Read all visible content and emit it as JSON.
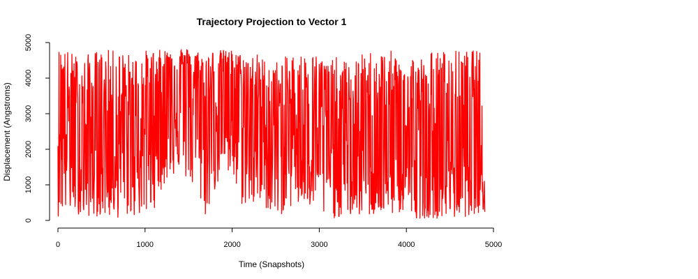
{
  "chart_data": {
    "type": "line",
    "title": "Trajectory Projection to Vector 1",
    "xlabel": "Time (Snapshots)",
    "ylabel": "Displacement (Angstroms)",
    "xlim": [
      0,
      5000
    ],
    "ylim": [
      0,
      5000
    ],
    "x_ticks": [
      0,
      1000,
      2000,
      3000,
      4000,
      5000
    ],
    "y_ticks": [
      0,
      1000,
      2000,
      3000,
      4000,
      5000
    ],
    "grid": false,
    "legend": "none",
    "series": [
      {
        "color": "#ff0000",
        "x": [
          0,
          100,
          200,
          300,
          400,
          500,
          600,
          700,
          800,
          900,
          1000,
          1100,
          1200,
          1300,
          1400,
          1500,
          1600,
          1700,
          1800,
          1900,
          2000,
          2100,
          2200,
          2300,
          2400,
          2500,
          2600,
          2700,
          2800,
          2900,
          3000,
          3100,
          3200,
          3300,
          3400,
          3500,
          3600,
          3700,
          3800,
          3900,
          4000,
          4100,
          4200,
          4300,
          4400,
          4500,
          4600,
          4700,
          4800,
          4900
        ],
        "y": [
          4000,
          3100,
          2300,
          1800,
          2200,
          2300,
          2500,
          2600,
          2400,
          2500,
          2700,
          3200,
          3900,
          4100,
          4200,
          4000,
          3600,
          2800,
          3800,
          4100,
          3900,
          3300,
          3000,
          3100,
          2700,
          2400,
          2600,
          2900,
          3000,
          2900,
          2700,
          2500,
          2200,
          2100,
          2000,
          2200,
          2400,
          2300,
          2100,
          2200,
          2000,
          1900,
          1900,
          2000,
          1800,
          1900,
          2000,
          2200,
          2300,
          2100
        ],
        "y_min": [
          100,
          150,
          200,
          100,
          100,
          100,
          50,
          50,
          100,
          100,
          100,
          300,
          900,
          1200,
          1400,
          1000,
          700,
          50,
          800,
          1300,
          1000,
          400,
          400,
          300,
          300,
          50,
          200,
          400,
          300,
          300,
          50,
          50,
          50,
          100,
          100,
          100,
          100,
          100,
          100,
          200,
          100,
          50,
          50,
          50,
          50,
          50,
          50,
          100,
          200,
          100
        ],
        "y_max": [
          4800,
          4800,
          4700,
          4600,
          4800,
          4800,
          4800,
          4800,
          4700,
          4700,
          4800,
          4800,
          4800,
          4850,
          4850,
          4850,
          4800,
          4800,
          4800,
          4800,
          4800,
          4700,
          4700,
          4700,
          4500,
          4500,
          4600,
          4700,
          4700,
          4700,
          4700,
          4500,
          4600,
          4500,
          4500,
          4700,
          4800,
          4800,
          4800,
          4700,
          4800,
          4700,
          4600,
          4800,
          4800,
          4800,
          4800,
          4800,
          4800,
          4800
        ]
      }
    ]
  }
}
